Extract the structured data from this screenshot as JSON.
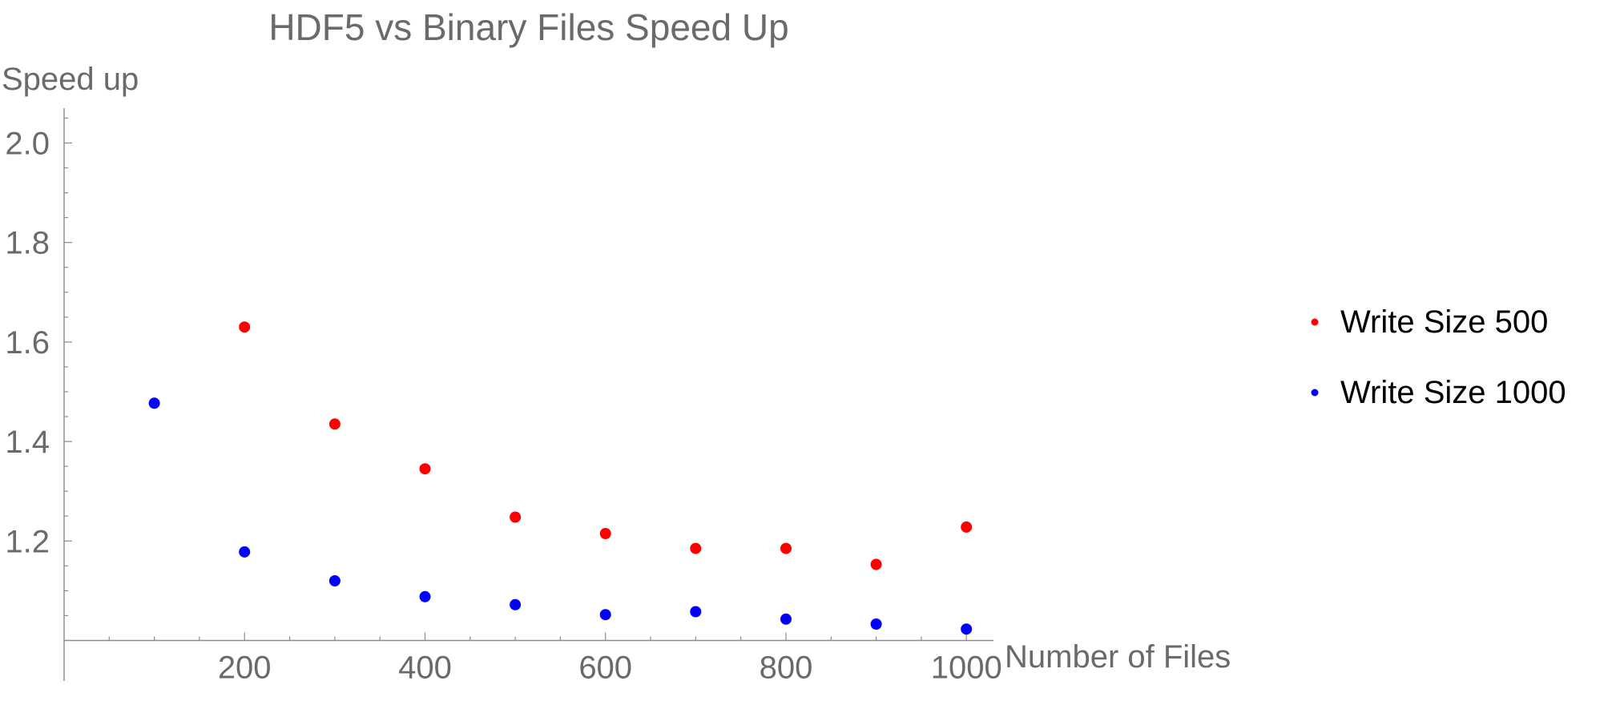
{
  "chart_data": {
    "type": "scatter",
    "title": "HDF5 vs Binary Files Speed Up",
    "xlabel": "Number of Files",
    "ylabel": "Speed up",
    "xlim": [
      0,
      1030
    ],
    "ylim": [
      0.975,
      2.07
    ],
    "axis_origin": {
      "x": 0,
      "y": 1.0
    },
    "x_ticks": [
      200,
      400,
      600,
      800,
      1000
    ],
    "x_tick_labels": [
      "200",
      "400",
      "600",
      "800",
      "1000"
    ],
    "y_ticks": [
      1.2,
      1.4,
      1.6,
      1.8,
      2.0
    ],
    "y_tick_labels": [
      "1.2",
      "1.4",
      "1.6",
      "1.8",
      "2.0"
    ],
    "x_minor_step": 50,
    "y_minor_step": 0.05,
    "grid": false,
    "legend_position": "right",
    "series": [
      {
        "name": "Write Size 500",
        "color": "#ff0000",
        "x": [
          200,
          300,
          400,
          500,
          600,
          700,
          800,
          900,
          1000
        ],
        "y": [
          1.63,
          1.435,
          1.345,
          1.248,
          1.215,
          1.185,
          1.185,
          1.153,
          1.228
        ]
      },
      {
        "name": "Write Size 1000",
        "color": "#0000ff",
        "x": [
          100,
          200,
          300,
          400,
          500,
          600,
          700,
          800,
          900,
          1000
        ],
        "y": [
          1.477,
          1.178,
          1.12,
          1.088,
          1.072,
          1.052,
          1.058,
          1.043,
          1.033,
          1.023
        ]
      }
    ]
  }
}
